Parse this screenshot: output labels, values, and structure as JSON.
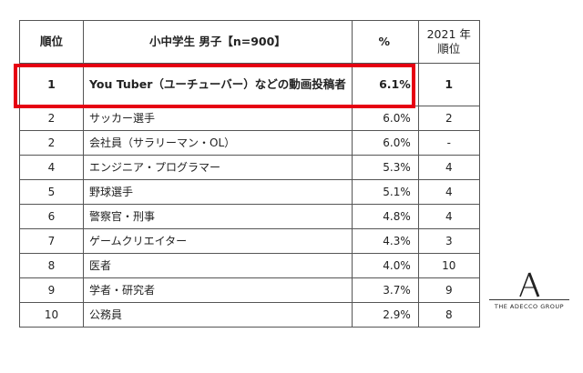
{
  "table": {
    "headers": {
      "rank": "順位",
      "job": "小中学生 男子【n=900】",
      "pct": "%",
      "prev_line1": "2021 年",
      "prev_line2": "順位"
    },
    "rows": [
      {
        "rank": "1",
        "job": "You Tuber（ユーチューバー）などの動画投稿者",
        "pct": "6.1%",
        "prev": "1"
      },
      {
        "rank": "2",
        "job": "サッカー選手",
        "pct": "6.0%",
        "prev": "2"
      },
      {
        "rank": "2",
        "job": "会社員（サラリーマン・OL）",
        "pct": "6.0%",
        "prev": "-"
      },
      {
        "rank": "4",
        "job": "エンジニア・プログラマー",
        "pct": "5.3%",
        "prev": "4"
      },
      {
        "rank": "5",
        "job": "野球選手",
        "pct": "5.1%",
        "prev": "4"
      },
      {
        "rank": "6",
        "job": "警察官・刑事",
        "pct": "4.8%",
        "prev": "4"
      },
      {
        "rank": "7",
        "job": "ゲームクリエイター",
        "pct": "4.3%",
        "prev": "3"
      },
      {
        "rank": "8",
        "job": "医者",
        "pct": "4.0%",
        "prev": "10"
      },
      {
        "rank": "9",
        "job": "学者・研究者",
        "pct": "3.7%",
        "prev": "9"
      },
      {
        "rank": "10",
        "job": "公務員",
        "pct": "2.9%",
        "prev": "8"
      }
    ]
  },
  "highlight_color": "#e60012",
  "logo": {
    "text": "THE ADECCO GROUP",
    "icon": "adecco-a-logo-icon"
  }
}
